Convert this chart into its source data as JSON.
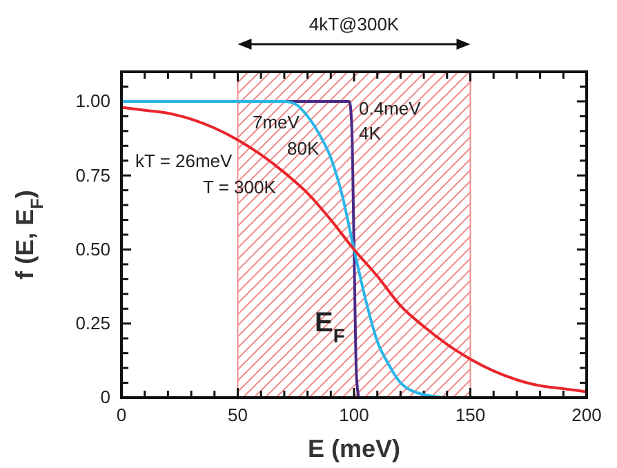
{
  "chart_data": {
    "type": "line",
    "xlabel": "E (meV)",
    "ylabel": "f (E, E$_{F}$)",
    "xlim": [
      0,
      200
    ],
    "ylim": [
      0,
      1.1
    ],
    "xticks": [
      0,
      {
        "value": 10,
        "label": null
      },
      {
        "value": 20,
        "label": null
      },
      {
        "value": 30,
        "label": null
      },
      {
        "value": 40,
        "label": null
      },
      50,
      {
        "value": 60,
        "label": null
      },
      {
        "value": 70,
        "label": null
      },
      {
        "value": 80,
        "label": null
      },
      {
        "value": 90,
        "label": null
      },
      100,
      {
        "value": 110,
        "label": null
      },
      {
        "value": 120,
        "label": null
      },
      {
        "value": 130,
        "label": null
      },
      {
        "value": 140,
        "label": null
      },
      150,
      {
        "value": 160,
        "label": null
      },
      {
        "value": 170,
        "label": null
      },
      {
        "value": 180,
        "label": null
      },
      {
        "value": 190,
        "label": null
      },
      200
    ],
    "yticks": [
      0,
      {
        "value": 0.05,
        "label": null
      },
      {
        "value": 0.1,
        "label": null
      },
      {
        "value": 0.15,
        "label": null
      },
      {
        "value": 0.2,
        "label": null
      },
      {
        "value": 0.25,
        "label": "0.25"
      },
      {
        "value": 0.3,
        "label": null
      },
      {
        "value": 0.35,
        "label": null
      },
      {
        "value": 0.4,
        "label": null
      },
      {
        "value": 0.45,
        "label": null
      },
      {
        "value": 0.5,
        "label": "0.50"
      },
      {
        "value": 0.55,
        "label": null
      },
      {
        "value": 0.6,
        "label": null
      },
      {
        "value": 0.65,
        "label": null
      },
      {
        "value": 0.7,
        "label": null
      },
      {
        "value": 0.75,
        "label": "0.75"
      },
      {
        "value": 0.8,
        "label": null
      },
      {
        "value": 0.85,
        "label": null
      },
      {
        "value": 0.9,
        "label": null
      },
      {
        "value": 0.95,
        "label": null
      },
      {
        "value": 1,
        "label": "1.00"
      },
      {
        "value": 1.05,
        "label": null
      }
    ],
    "grid": false,
    "line_style": "solid",
    "marker": "none",
    "bands": [
      {
        "axis": "x",
        "from": 50,
        "to": 150,
        "label": "4kT@300K",
        "color": "#f28b8b"
      }
    ],
    "series": [
      {
        "color": "#e8262b",
        "x": [
          0,
          10,
          20,
          30,
          40,
          50,
          60,
          70,
          80,
          90,
          100,
          110,
          120,
          130,
          140,
          150,
          160,
          170,
          180,
          190,
          200
        ],
        "values": [
          0.98,
          0.97,
          0.96,
          0.94,
          0.91,
          0.87,
          0.82,
          0.76,
          0.69,
          0.6,
          0.5,
          0.41,
          0.31,
          0.24,
          0.18,
          0.13,
          0.09,
          0.06,
          0.04,
          0.03,
          0.02
        ]
      },
      {
        "color": "#29b5e8",
        "x": [
          0,
          50,
          70,
          75,
          80,
          85,
          90,
          95,
          100,
          105,
          110,
          115,
          120,
          130,
          140
        ],
        "values": [
          1,
          1,
          1,
          0.99,
          0.95,
          0.89,
          0.81,
          0.68,
          0.5,
          0.33,
          0.19,
          0.11,
          0.05,
          0.01,
          0
        ]
      },
      {
        "color": "#4b2a86",
        "x": [
          0,
          98,
          99,
          100,
          101,
          102
        ],
        "values": [
          1,
          1,
          0.92,
          0.5,
          0.08,
          0
        ]
      }
    ],
    "annotations": [
      "kT = 26meV",
      "T = 300K",
      "7meV",
      "80K",
      "0.4meV",
      "4K",
      "E$_{F}$"
    ]
  }
}
